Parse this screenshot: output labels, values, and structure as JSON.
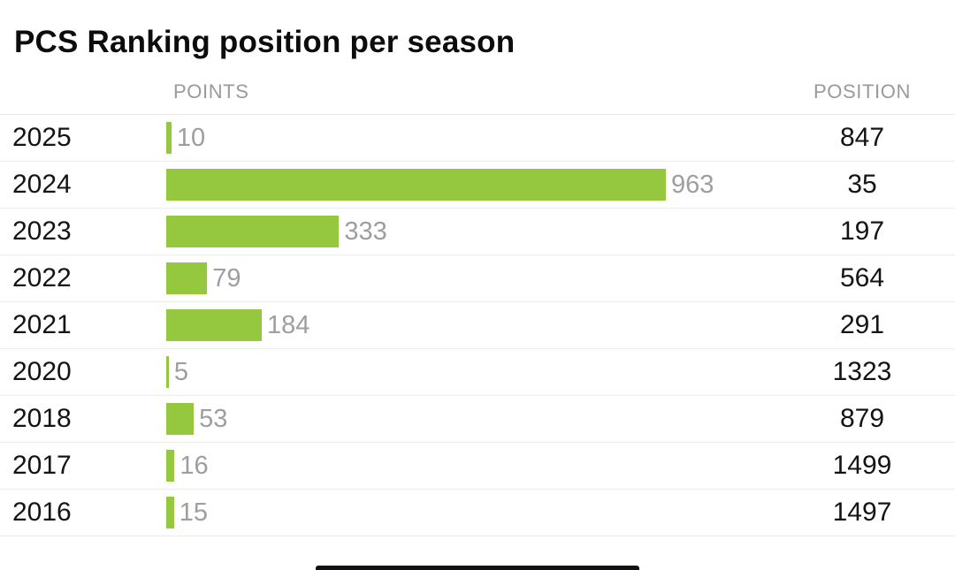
{
  "title": "PCS Ranking position per season",
  "chart_data": {
    "type": "bar",
    "orientation": "horizontal",
    "title": "PCS Ranking position per season",
    "columns": {
      "points": "POINTS",
      "position": "POSITION"
    },
    "categories": [
      "2025",
      "2024",
      "2023",
      "2022",
      "2021",
      "2020",
      "2018",
      "2017",
      "2016"
    ],
    "series": [
      {
        "name": "POINTS",
        "values": [
          10,
          963,
          333,
          79,
          184,
          5,
          53,
          16,
          15
        ]
      },
      {
        "name": "POSITION",
        "values": [
          847,
          35,
          197,
          564,
          291,
          1323,
          879,
          1499,
          1497
        ]
      }
    ],
    "xlim": [
      0,
      963
    ],
    "value_labels": "shown-right-of-bar",
    "grid": "horizontal-row-separators",
    "legend": "none",
    "bar_color": "#95c83e",
    "value_label_color": "#9e9e9e",
    "header_color": "#9a9a9a",
    "text_color": "#141414"
  }
}
